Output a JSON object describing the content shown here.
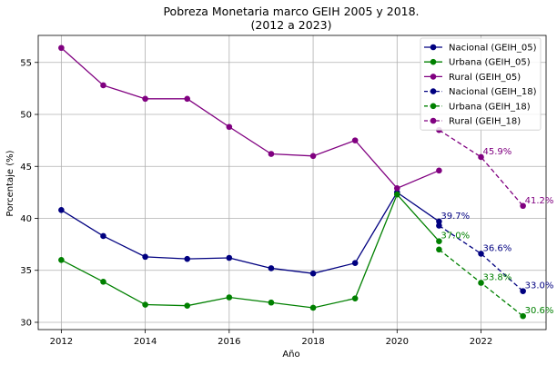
{
  "chart_data": {
    "type": "line",
    "title": "Pobreza Monetaria marco GEIH 2005 y 2018.",
    "subtitle": "(2012 a 2023)",
    "xlabel": "Año",
    "ylabel": "Porcentaje (%)",
    "xlim": [
      2011.45,
      2023.55
    ],
    "ylim": [
      29.3,
      57.6
    ],
    "xticks": [
      2012,
      2014,
      2016,
      2018,
      2020,
      2022
    ],
    "yticks": [
      30,
      35,
      40,
      45,
      50,
      55
    ],
    "grid": true,
    "legend_position": "top-right",
    "series": [
      {
        "name": "Nacional (GEIH_05)",
        "color": "#000080",
        "style": "solid",
        "x": [
          2012,
          2013,
          2014,
          2015,
          2016,
          2017,
          2018,
          2019,
          2020,
          2021
        ],
        "y": [
          40.8,
          38.3,
          36.3,
          36.1,
          36.2,
          35.2,
          34.7,
          35.7,
          42.5,
          39.7
        ]
      },
      {
        "name": "Urbana (GEIH_05)",
        "color": "#008000",
        "style": "solid",
        "x": [
          2012,
          2013,
          2014,
          2015,
          2016,
          2017,
          2018,
          2019,
          2020,
          2021
        ],
        "y": [
          36.0,
          33.9,
          31.7,
          31.6,
          32.4,
          31.9,
          31.4,
          32.3,
          42.3,
          37.8
        ]
      },
      {
        "name": "Rural (GEIH_05)",
        "color": "#800080",
        "style": "solid",
        "x": [
          2012,
          2013,
          2014,
          2015,
          2016,
          2017,
          2018,
          2019,
          2020,
          2021
        ],
        "y": [
          56.4,
          52.8,
          51.5,
          51.5,
          48.8,
          46.2,
          46.0,
          47.5,
          42.9,
          44.6
        ]
      },
      {
        "name": "Nacional (GEIH_18)",
        "color": "#000080",
        "style": "dashed",
        "x": [
          2021,
          2022,
          2023
        ],
        "y": [
          39.3,
          36.6,
          33.0
        ]
      },
      {
        "name": "Urbana (GEIH_18)",
        "color": "#008000",
        "style": "dashed",
        "x": [
          2021,
          2022,
          2023
        ],
        "y": [
          37.0,
          33.8,
          30.6
        ]
      },
      {
        "name": "Rural (GEIH_18)",
        "color": "#800080",
        "style": "dashed",
        "x": [
          2021,
          2022,
          2023
        ],
        "y": [
          48.5,
          45.9,
          41.2
        ]
      }
    ],
    "annotations": [
      {
        "text": "39.7%",
        "x": 2021,
        "y": 39.7,
        "color": "#000080"
      },
      {
        "text": "37.0%",
        "x": 2021,
        "y": 37.8,
        "color": "#008000"
      },
      {
        "text": "45.9%",
        "x": 2022,
        "y": 45.9,
        "color": "#800080"
      },
      {
        "text": "36.6%",
        "x": 2022,
        "y": 36.6,
        "color": "#000080"
      },
      {
        "text": "33.8%",
        "x": 2022,
        "y": 33.8,
        "color": "#008000"
      },
      {
        "text": "41.2%",
        "x": 2023,
        "y": 41.2,
        "color": "#800080"
      },
      {
        "text": "33.0%",
        "x": 2023,
        "y": 33.0,
        "color": "#000080"
      },
      {
        "text": "30.6%",
        "x": 2023,
        "y": 30.6,
        "color": "#008000"
      }
    ]
  }
}
